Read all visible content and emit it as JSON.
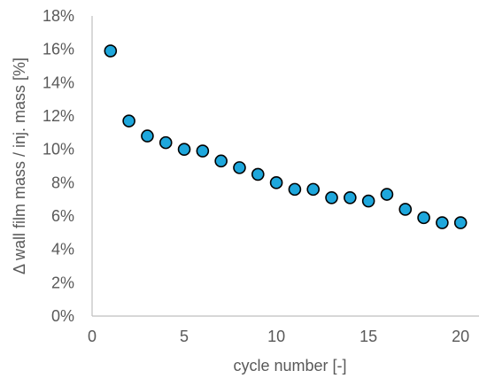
{
  "chart_data": {
    "type": "scatter",
    "xlabel": "cycle number [-]",
    "ylabel": "Δ wall film mass / inj. mass [%]",
    "xlim": [
      0,
      21
    ],
    "ylim": [
      0,
      18
    ],
    "xticks": [
      0,
      5,
      10,
      15,
      20
    ],
    "yticks": [
      0,
      2,
      4,
      6,
      8,
      10,
      12,
      14,
      16,
      18
    ],
    "y_tick_suffix": "%",
    "grid": false,
    "legend": "none",
    "marker_color": "#1ea7dc",
    "marker_edge_color": "#000000",
    "series": [
      {
        "x": [
          1,
          2,
          3,
          4,
          5,
          6,
          7,
          8,
          9,
          10,
          11,
          12,
          13,
          14,
          15,
          16,
          17,
          18,
          19,
          20
        ],
        "y": [
          15.9,
          11.7,
          10.8,
          10.4,
          10.0,
          9.9,
          9.3,
          8.9,
          8.5,
          8.0,
          7.6,
          7.6,
          7.1,
          7.1,
          6.9,
          7.3,
          6.4,
          5.9,
          5.6,
          5.6
        ]
      }
    ]
  }
}
